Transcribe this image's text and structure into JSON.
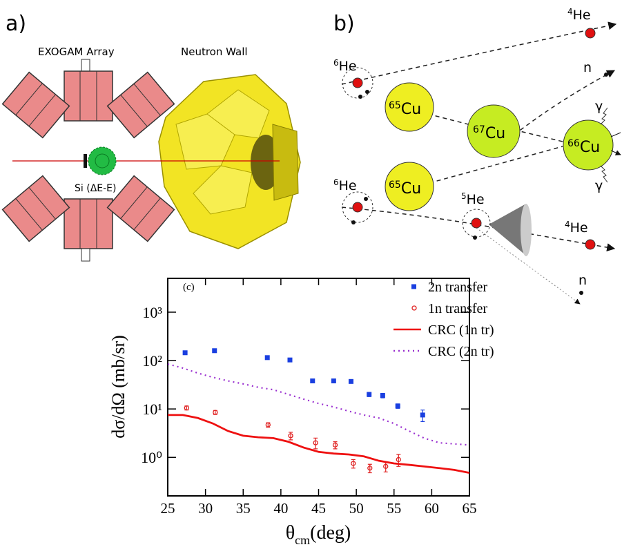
{
  "panel_a": {
    "label": "a)",
    "array_label": "EXOGAM Array",
    "wall_label": "Neutron Wall",
    "detector_label": "Si (ΔE-E)"
  },
  "panel_b": {
    "label": "b)",
    "nuclei": [
      {
        "mass": "4",
        "symbol": "He"
      },
      {
        "mass": "6",
        "symbol": "He"
      },
      {
        "mass": "65",
        "symbol": "Cu"
      },
      {
        "mass": "67",
        "symbol": "Cu"
      },
      {
        "mass": "66",
        "symbol": "Cu"
      },
      {
        "mass": "6",
        "symbol": "He"
      },
      {
        "mass": "65",
        "symbol": "Cu"
      },
      {
        "mass": "5",
        "symbol": "He"
      },
      {
        "mass": "4",
        "symbol": "He"
      }
    ],
    "particles": [
      "n",
      "γ",
      "γ",
      "n"
    ]
  },
  "chart_data": {
    "type": "scatter",
    "panel_label": "(c)",
    "ylabel": "dσ/dΩ (mb/sr)",
    "xlabel": "θ",
    "xlabel_sub": "cm",
    "xlabel_unit": "(deg)",
    "xlim": [
      25,
      65
    ],
    "xticks": [
      25,
      30,
      35,
      40,
      45,
      50,
      55,
      60,
      65
    ],
    "ylim": [
      0.16,
      5000
    ],
    "ylog": true,
    "yticks": [
      {
        "value": 1,
        "label": "10⁰"
      },
      {
        "value": 10,
        "label": "10¹"
      },
      {
        "value": 100,
        "label": "10²"
      },
      {
        "value": 1000,
        "label": "10³"
      }
    ],
    "legend": "upper right",
    "series": [
      {
        "name": "2n transfer",
        "type": "scatter",
        "marker": "square",
        "color": "#1a3fe0",
        "x": [
          27.3,
          31.2,
          38.2,
          41.2,
          44.2,
          47,
          49.3,
          51.7,
          53.5,
          55.5,
          58.8
        ],
        "values": [
          145,
          160,
          115,
          103,
          38,
          38,
          37,
          20,
          19,
          11.5,
          7.5
        ],
        "errors": [
          8,
          8,
          6,
          6,
          3,
          3,
          3,
          2,
          2,
          1.2,
          2
        ]
      },
      {
        "name": "1n transfer",
        "type": "scatter",
        "marker": "circle",
        "color": "#e02020",
        "x": [
          27.5,
          31.3,
          38.3,
          41.3,
          44.6,
          47.2,
          49.6,
          51.8,
          53.9,
          55.6
        ],
        "values": [
          10.5,
          8.5,
          4.7,
          2.8,
          2.0,
          1.8,
          0.75,
          0.6,
          0.65,
          0.9
        ],
        "errors": [
          1,
          0.8,
          0.5,
          0.5,
          0.5,
          0.3,
          0.15,
          0.12,
          0.15,
          0.25
        ]
      },
      {
        "name": "CRC (1n tr)",
        "type": "line",
        "dash": "solid",
        "color": "#ee1111",
        "x": [
          25,
          27,
          29,
          31,
          33,
          35,
          37,
          39,
          41,
          43,
          45,
          47,
          49,
          51,
          53,
          55,
          57,
          59,
          61,
          63,
          65
        ],
        "values": [
          7.5,
          7.5,
          6.5,
          5,
          3.5,
          2.8,
          2.6,
          2.5,
          2.1,
          1.6,
          1.3,
          1.2,
          1.15,
          1.05,
          0.85,
          0.75,
          0.7,
          0.65,
          0.6,
          0.55,
          0.48
        ]
      },
      {
        "name": "CRC (2n tr)",
        "type": "line",
        "dash": "dotted",
        "color": "#9a30d0",
        "x": [
          25,
          27,
          29,
          31,
          33,
          35,
          37,
          39,
          41,
          43,
          45,
          47,
          49,
          51,
          53,
          55,
          57,
          59,
          61,
          63,
          65
        ],
        "values": [
          85,
          70,
          55,
          45,
          38,
          33,
          28,
          25,
          20,
          16,
          13,
          11,
          9,
          7.5,
          6.5,
          5,
          3.5,
          2.5,
          2,
          1.9,
          1.8
        ]
      }
    ]
  }
}
